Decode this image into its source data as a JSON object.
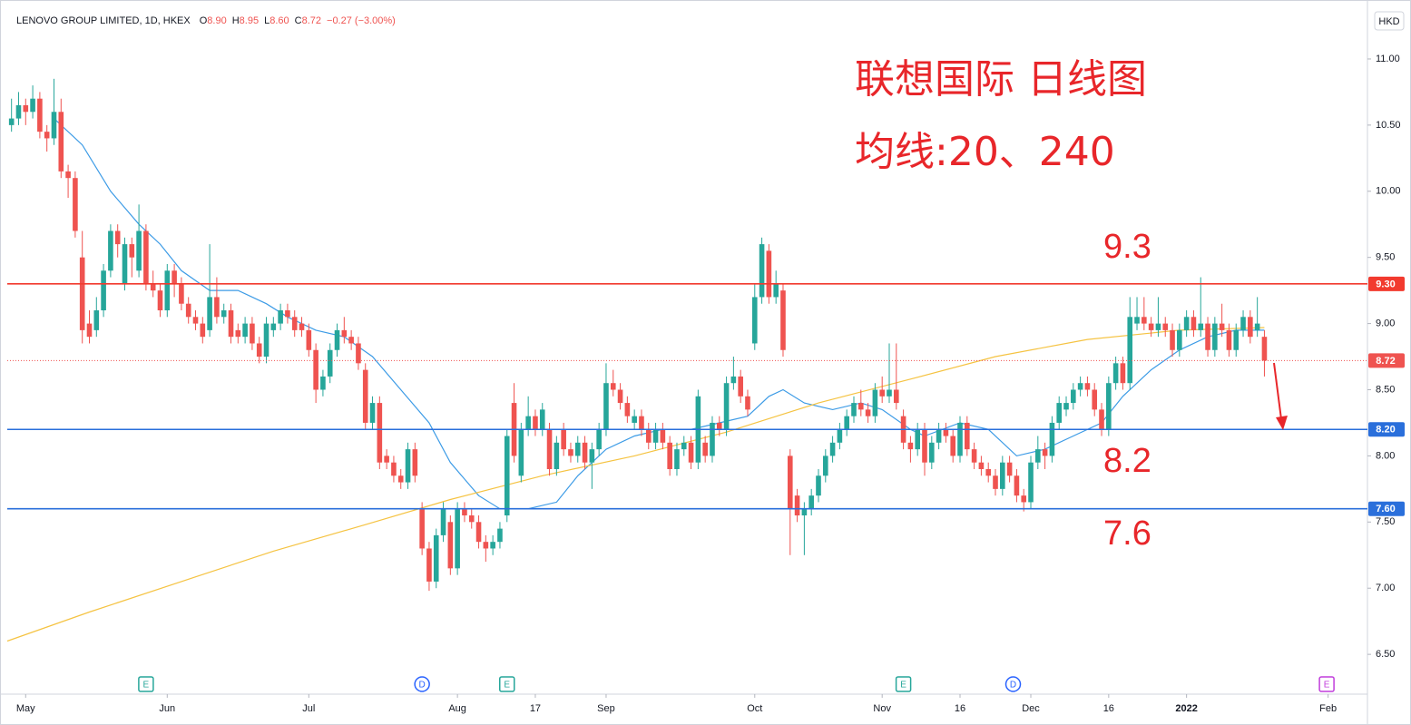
{
  "chart_data": {
    "type": "candlestick",
    "title": "LENOVO GROUP LIMITED, 1D, HKEX",
    "quote": [
      {
        "label": "O",
        "value": "8.90"
      },
      {
        "label": "H",
        "value": "8.95"
      },
      {
        "label": "L",
        "value": "8.60"
      },
      {
        "label": "C",
        "value": "8.72"
      }
    ],
    "change": "−0.27 (−3.00%)",
    "currency": "HKD",
    "up_color": "#26a69a",
    "down_color": "#ef5350",
    "candles": [
      [
        10.5,
        10.7,
        10.45,
        10.55
      ],
      [
        10.55,
        10.75,
        10.5,
        10.65
      ],
      [
        10.65,
        10.7,
        10.5,
        10.6
      ],
      [
        10.6,
        10.8,
        10.55,
        10.7
      ],
      [
        10.7,
        10.75,
        10.4,
        10.45
      ],
      [
        10.45,
        10.5,
        10.3,
        10.4
      ],
      [
        10.4,
        10.85,
        10.35,
        10.6
      ],
      [
        10.6,
        10.7,
        10.1,
        10.15
      ],
      [
        10.15,
        10.2,
        9.95,
        10.1
      ],
      [
        10.1,
        10.15,
        9.65,
        9.7
      ],
      [
        9.5,
        9.7,
        8.85,
        8.95
      ],
      [
        9.0,
        9.1,
        8.85,
        8.9
      ],
      [
        8.95,
        9.2,
        8.9,
        9.1
      ],
      [
        9.1,
        9.45,
        9.05,
        9.4
      ],
      [
        9.4,
        9.75,
        9.35,
        9.7
      ],
      [
        9.7,
        9.75,
        9.5,
        9.6
      ],
      [
        9.3,
        9.65,
        9.25,
        9.6
      ],
      [
        9.6,
        9.65,
        9.35,
        9.5
      ],
      [
        9.4,
        9.9,
        9.35,
        9.7
      ],
      [
        9.7,
        9.75,
        9.25,
        9.3
      ],
      [
        9.3,
        9.4,
        9.2,
        9.25
      ],
      [
        9.25,
        9.3,
        9.05,
        9.1
      ],
      [
        9.1,
        9.45,
        9.05,
        9.4
      ],
      [
        9.4,
        9.45,
        9.2,
        9.3
      ],
      [
        9.3,
        9.35,
        9.1,
        9.15
      ],
      [
        9.15,
        9.2,
        9.0,
        9.05
      ],
      [
        9.05,
        9.1,
        8.95,
        9.0
      ],
      [
        9.0,
        9.05,
        8.85,
        8.9
      ],
      [
        8.95,
        9.6,
        8.9,
        9.2
      ],
      [
        9.2,
        9.35,
        9.0,
        9.05
      ],
      [
        9.05,
        9.15,
        9.0,
        9.1
      ],
      [
        9.1,
        9.15,
        8.85,
        8.9
      ],
      [
        8.95,
        9.0,
        8.85,
        8.9
      ],
      [
        8.9,
        9.05,
        8.85,
        9.0
      ],
      [
        9.0,
        9.05,
        8.8,
        8.85
      ],
      [
        8.85,
        8.9,
        8.7,
        8.75
      ],
      [
        8.75,
        9.05,
        8.7,
        9.0
      ],
      [
        8.95,
        9.05,
        8.9,
        9.0
      ],
      [
        9.0,
        9.15,
        8.95,
        9.1
      ],
      [
        9.1,
        9.15,
        9.0,
        9.05
      ],
      [
        9.05,
        9.1,
        8.9,
        8.95
      ],
      [
        9.0,
        9.05,
        8.9,
        8.95
      ],
      [
        8.95,
        9.0,
        8.75,
        8.8
      ],
      [
        8.8,
        8.85,
        8.4,
        8.5
      ],
      [
        8.5,
        8.65,
        8.45,
        8.6
      ],
      [
        8.6,
        8.85,
        8.55,
        8.8
      ],
      [
        8.8,
        9.0,
        8.75,
        8.95
      ],
      [
        8.95,
        9.05,
        8.85,
        8.9
      ],
      [
        8.9,
        8.95,
        8.8,
        8.85
      ],
      [
        8.85,
        8.9,
        8.65,
        8.7
      ],
      [
        8.65,
        8.7,
        8.2,
        8.25
      ],
      [
        8.25,
        8.45,
        8.2,
        8.4
      ],
      [
        8.4,
        8.45,
        7.9,
        7.95
      ],
      [
        8.0,
        8.05,
        7.9,
        7.95
      ],
      [
        7.95,
        8.0,
        7.8,
        7.85
      ],
      [
        7.85,
        7.9,
        7.75,
        7.8
      ],
      [
        7.8,
        8.1,
        7.75,
        8.05
      ],
      [
        8.05,
        8.1,
        7.8,
        7.85
      ],
      [
        7.6,
        7.65,
        7.25,
        7.3
      ],
      [
        7.3,
        7.35,
        6.98,
        7.05
      ],
      [
        7.05,
        7.45,
        7.0,
        7.4
      ],
      [
        7.4,
        7.65,
        7.35,
        7.6
      ],
      [
        7.5,
        7.55,
        7.1,
        7.15
      ],
      [
        7.15,
        7.65,
        7.1,
        7.6
      ],
      [
        7.6,
        7.65,
        7.5,
        7.55
      ],
      [
        7.55,
        7.6,
        7.45,
        7.5
      ],
      [
        7.5,
        7.55,
        7.3,
        7.35
      ],
      [
        7.35,
        7.4,
        7.2,
        7.3
      ],
      [
        7.3,
        7.4,
        7.25,
        7.35
      ],
      [
        7.35,
        7.5,
        7.3,
        7.45
      ],
      [
        7.55,
        8.2,
        7.5,
        8.15
      ],
      [
        8.4,
        8.55,
        7.95,
        8.0
      ],
      [
        7.85,
        8.25,
        7.8,
        8.2
      ],
      [
        8.2,
        8.45,
        8.15,
        8.3
      ],
      [
        8.3,
        8.35,
        8.15,
        8.2
      ],
      [
        8.2,
        8.4,
        8.15,
        8.35
      ],
      [
        8.2,
        8.25,
        7.85,
        7.9
      ],
      [
        7.9,
        8.15,
        7.85,
        8.1
      ],
      [
        8.2,
        8.25,
        8.0,
        8.05
      ],
      [
        8.05,
        8.1,
        7.95,
        8.0
      ],
      [
        8.0,
        8.15,
        7.95,
        8.1
      ],
      [
        8.1,
        8.15,
        7.9,
        7.95
      ],
      [
        7.95,
        8.1,
        7.75,
        8.05
      ],
      [
        8.05,
        8.25,
        8.0,
        8.2
      ],
      [
        8.2,
        8.7,
        8.15,
        8.55
      ],
      [
        8.55,
        8.65,
        8.45,
        8.5
      ],
      [
        8.5,
        8.55,
        8.35,
        8.4
      ],
      [
        8.4,
        8.45,
        8.25,
        8.3
      ],
      [
        8.25,
        8.35,
        8.2,
        8.3
      ],
      [
        8.3,
        8.35,
        8.15,
        8.2
      ],
      [
        8.2,
        8.25,
        8.05,
        8.1
      ],
      [
        8.1,
        8.25,
        8.05,
        8.2
      ],
      [
        8.2,
        8.25,
        8.05,
        8.1
      ],
      [
        8.1,
        8.15,
        7.85,
        7.9
      ],
      [
        7.9,
        8.1,
        7.85,
        8.05
      ],
      [
        8.05,
        8.15,
        8.0,
        8.1
      ],
      [
        8.1,
        8.15,
        7.9,
        7.95
      ],
      [
        7.95,
        8.5,
        7.9,
        8.45
      ],
      [
        8.1,
        8.15,
        7.95,
        8.0
      ],
      [
        8.0,
        8.3,
        7.95,
        8.25
      ],
      [
        8.25,
        8.3,
        8.15,
        8.2
      ],
      [
        8.2,
        8.6,
        8.15,
        8.55
      ],
      [
        8.55,
        8.75,
        8.5,
        8.6
      ],
      [
        8.6,
        8.65,
        8.4,
        8.45
      ],
      [
        8.45,
        8.5,
        8.3,
        8.35
      ],
      [
        8.85,
        9.3,
        8.8,
        9.2
      ],
      [
        9.2,
        9.65,
        9.15,
        9.6
      ],
      [
        9.55,
        9.6,
        9.15,
        9.2
      ],
      [
        9.2,
        9.4,
        9.15,
        9.3
      ],
      [
        9.25,
        9.3,
        8.75,
        8.8
      ],
      [
        8.0,
        8.05,
        7.25,
        7.6
      ],
      [
        7.7,
        7.75,
        7.5,
        7.55
      ],
      [
        7.55,
        7.65,
        7.25,
        7.6
      ],
      [
        7.6,
        7.75,
        7.55,
        7.7
      ],
      [
        7.7,
        7.9,
        7.65,
        7.85
      ],
      [
        7.85,
        8.05,
        7.8,
        8.0
      ],
      [
        8.0,
        8.15,
        7.95,
        8.1
      ],
      [
        8.1,
        8.25,
        8.05,
        8.2
      ],
      [
        8.2,
        8.35,
        8.15,
        8.3
      ],
      [
        8.3,
        8.45,
        8.25,
        8.4
      ],
      [
        8.4,
        8.5,
        8.3,
        8.35
      ],
      [
        8.35,
        8.4,
        8.25,
        8.3
      ],
      [
        8.3,
        8.55,
        8.25,
        8.5
      ],
      [
        8.5,
        8.6,
        8.4,
        8.45
      ],
      [
        8.45,
        8.85,
        8.4,
        8.5
      ],
      [
        8.5,
        8.85,
        8.35,
        8.4
      ],
      [
        8.3,
        8.35,
        8.05,
        8.1
      ],
      [
        8.1,
        8.15,
        7.95,
        8.05
      ],
      [
        8.05,
        8.25,
        8.0,
        8.2
      ],
      [
        8.2,
        8.25,
        7.85,
        7.95
      ],
      [
        7.95,
        8.15,
        7.9,
        8.1
      ],
      [
        8.1,
        8.25,
        8.05,
        8.2
      ],
      [
        8.2,
        8.25,
        8.1,
        8.15
      ],
      [
        8.15,
        8.2,
        7.95,
        8.0
      ],
      [
        8.0,
        8.3,
        7.95,
        8.25
      ],
      [
        8.25,
        8.3,
        8.0,
        8.05
      ],
      [
        8.05,
        8.1,
        7.9,
        7.95
      ],
      [
        7.95,
        8.0,
        7.85,
        7.9
      ],
      [
        7.9,
        7.95,
        7.8,
        7.85
      ],
      [
        7.85,
        7.9,
        7.7,
        7.75
      ],
      [
        7.75,
        8.0,
        7.7,
        7.95
      ],
      [
        7.95,
        8.0,
        7.8,
        7.85
      ],
      [
        7.85,
        7.9,
        7.65,
        7.7
      ],
      [
        7.7,
        7.75,
        7.58,
        7.65
      ],
      [
        7.65,
        8.0,
        7.6,
        7.95
      ],
      [
        7.95,
        8.15,
        7.9,
        8.05
      ],
      [
        8.05,
        8.1,
        7.9,
        8.0
      ],
      [
        8.0,
        8.3,
        7.95,
        8.25
      ],
      [
        8.25,
        8.45,
        8.2,
        8.4
      ],
      [
        8.35,
        8.45,
        8.3,
        8.4
      ],
      [
        8.4,
        8.55,
        8.35,
        8.5
      ],
      [
        8.5,
        8.6,
        8.45,
        8.55
      ],
      [
        8.55,
        8.6,
        8.45,
        8.5
      ],
      [
        8.5,
        8.55,
        8.3,
        8.35
      ],
      [
        8.35,
        8.4,
        8.15,
        8.2
      ],
      [
        8.2,
        8.6,
        8.15,
        8.55
      ],
      [
        8.55,
        8.75,
        8.5,
        8.7
      ],
      [
        8.7,
        8.75,
        8.5,
        8.55
      ],
      [
        8.55,
        9.2,
        8.5,
        9.05
      ],
      [
        9.0,
        9.2,
        8.95,
        9.05
      ],
      [
        9.05,
        9.2,
        8.95,
        9.0
      ],
      [
        9.0,
        9.05,
        8.9,
        8.95
      ],
      [
        8.95,
        9.2,
        8.9,
        9.0
      ],
      [
        9.0,
        9.05,
        8.9,
        8.95
      ],
      [
        8.95,
        9.0,
        8.75,
        8.8
      ],
      [
        8.8,
        9.0,
        8.75,
        8.95
      ],
      [
        8.95,
        9.1,
        8.9,
        9.05
      ],
      [
        9.05,
        9.1,
        8.9,
        8.95
      ],
      [
        8.95,
        9.35,
        8.9,
        9.0
      ],
      [
        9.0,
        9.05,
        8.75,
        8.8
      ],
      [
        8.8,
        9.05,
        8.75,
        9.0
      ],
      [
        9.0,
        9.15,
        8.9,
        8.95
      ],
      [
        8.95,
        9.0,
        8.75,
        8.8
      ],
      [
        8.8,
        9.0,
        8.75,
        8.95
      ],
      [
        8.95,
        9.1,
        8.9,
        9.05
      ],
      [
        9.05,
        9.1,
        8.85,
        8.9
      ],
      [
        8.95,
        9.2,
        8.9,
        9.0
      ],
      [
        8.9,
        8.95,
        8.6,
        8.72
      ]
    ],
    "series": [
      {
        "name": "MA20",
        "color": "#3c9be6",
        "x": [
          6,
          10,
          14,
          18,
          21,
          24,
          28,
          32,
          36,
          39,
          43,
          47,
          51,
          55,
          59,
          62,
          66,
          69,
          73,
          77,
          80,
          84,
          88,
          92,
          96,
          100,
          104,
          107,
          109,
          112,
          116,
          120,
          123,
          127,
          129,
          134,
          138,
          142,
          146,
          150,
          154,
          157,
          161,
          165,
          169,
          173,
          177
        ],
        "values": [
          10.55,
          10.35,
          10.0,
          9.75,
          9.6,
          9.4,
          9.25,
          9.25,
          9.15,
          9.05,
          8.95,
          8.9,
          8.75,
          8.5,
          8.25,
          7.95,
          7.7,
          7.6,
          7.6,
          7.65,
          7.85,
          8.05,
          8.15,
          8.2,
          8.2,
          8.25,
          8.3,
          8.45,
          8.5,
          8.4,
          8.35,
          8.4,
          8.35,
          8.2,
          8.15,
          8.25,
          8.2,
          8.0,
          8.05,
          8.15,
          8.25,
          8.45,
          8.65,
          8.8,
          8.9,
          8.95,
          8.95
        ]
      },
      {
        "name": "MA240",
        "color": "#f5c342",
        "x": [
          -0.6,
          11,
          24,
          37,
          50,
          62,
          75,
          88,
          101,
          114,
          127,
          139,
          152,
          165,
          177
        ],
        "values": [
          6.6,
          6.82,
          7.05,
          7.28,
          7.48,
          7.67,
          7.85,
          8.0,
          8.18,
          8.4,
          8.58,
          8.75,
          8.88,
          8.95,
          8.97
        ]
      }
    ],
    "xlim": [
      -0.6,
      191.3
    ],
    "ylim": [
      6.35,
      11.2
    ],
    "xticks": [
      {
        "value": 2,
        "label": "May"
      },
      {
        "value": 22,
        "label": "Jun"
      },
      {
        "value": 42,
        "label": "Jul"
      },
      {
        "value": 63,
        "label": "Aug"
      },
      {
        "value": 74,
        "label": "17"
      },
      {
        "value": 84,
        "label": "Sep"
      },
      {
        "value": 105,
        "label": "Oct"
      },
      {
        "value": 123,
        "label": "Nov"
      },
      {
        "value": 134,
        "label": "16"
      },
      {
        "value": 144,
        "label": "Dec"
      },
      {
        "value": 155,
        "label": "16"
      },
      {
        "value": 166,
        "label": "2022"
      },
      {
        "value": 186,
        "label": "Feb"
      }
    ],
    "yticks": [
      {
        "value": 11,
        "label": "11.00"
      },
      {
        "value": 10.5,
        "label": "10.50"
      },
      {
        "value": 10,
        "label": "10.00"
      },
      {
        "value": 9.5,
        "label": "9.50"
      },
      {
        "value": 9,
        "label": "9.00"
      },
      {
        "value": 8.5,
        "label": "8.50"
      },
      {
        "value": 8,
        "label": "8.00"
      },
      {
        "value": 7.5,
        "label": "7.50"
      },
      {
        "value": 7,
        "label": "7.00"
      },
      {
        "value": 6.5,
        "label": "6.50"
      }
    ],
    "grid": false,
    "levels": [
      {
        "value": 9.3,
        "label": "9.30",
        "color": "#f23a2e",
        "style": "solid"
      },
      {
        "value": 8.2,
        "label": "8.20",
        "color": "#2a6fdb",
        "style": "solid"
      },
      {
        "value": 7.6,
        "label": "7.60",
        "color": "#2a6fdb",
        "style": "solid"
      },
      {
        "value": 8.72,
        "label": "8.72",
        "color": "#ef5350",
        "style": "dotted"
      }
    ],
    "events": [
      {
        "x": 19,
        "label": "E",
        "color": "#26a69a",
        "shape": "square"
      },
      {
        "x": 58,
        "label": "D",
        "color": "#2962ff",
        "shape": "circle"
      },
      {
        "x": 70,
        "label": "E",
        "color": "#26a69a",
        "shape": "square"
      },
      {
        "x": 126,
        "label": "E",
        "color": "#26a69a",
        "shape": "square"
      },
      {
        "x": 141.5,
        "label": "D",
        "color": "#2962ff",
        "shape": "circle"
      },
      {
        "x": 185.8,
        "label": "E",
        "color": "#c03ddb",
        "shape": "square"
      }
    ],
    "annotations": [
      "联想国际 日线图",
      "均线:20、240",
      "9.3",
      "8.2",
      "7.6"
    ]
  }
}
